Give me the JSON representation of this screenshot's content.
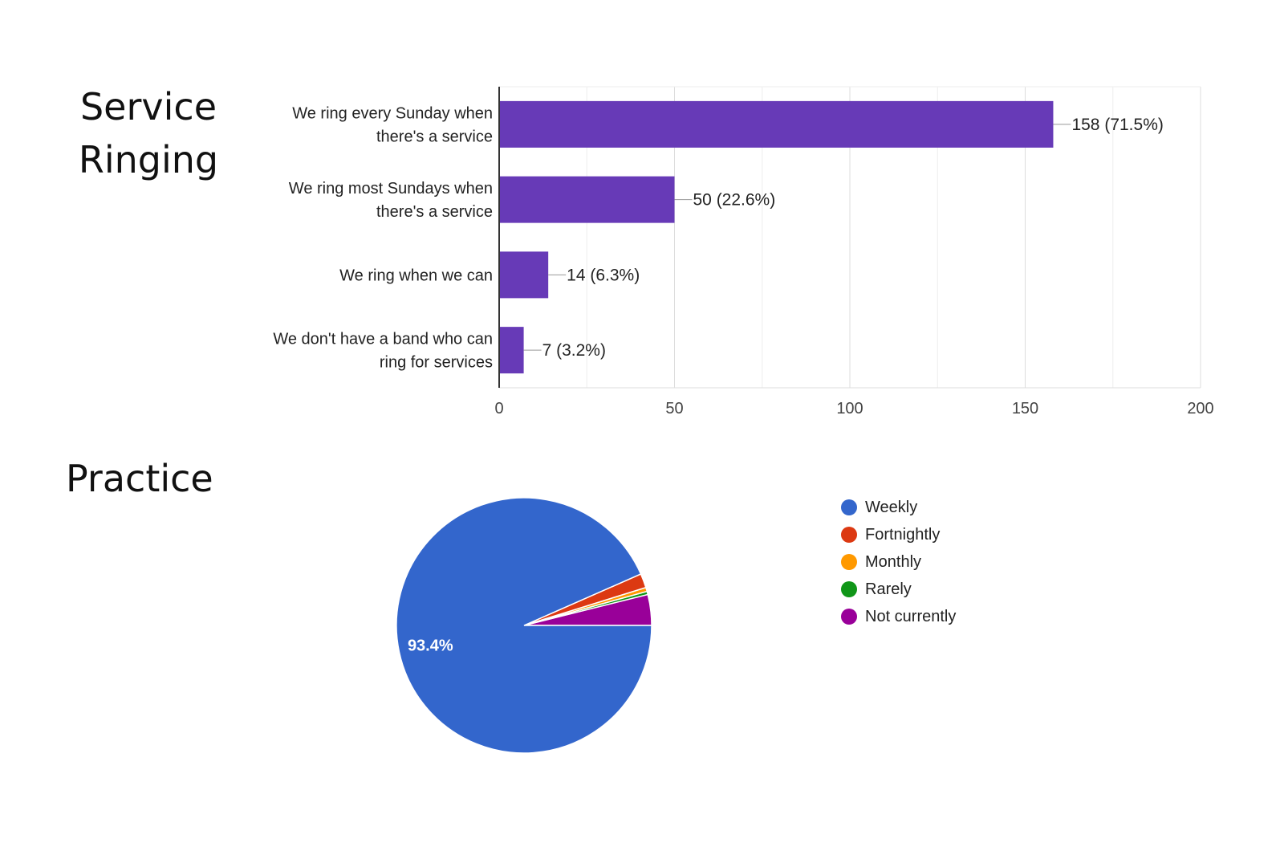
{
  "sections": {
    "service_title": "Service Ringing",
    "practice_title": "Practice"
  },
  "chart_data": [
    {
      "type": "bar",
      "orientation": "horizontal",
      "categories": [
        [
          "We ring every Sunday when",
          "there's a service"
        ],
        [
          "We ring most Sundays when",
          "there's a service"
        ],
        [
          "We ring when we can"
        ],
        [
          "We don't have a band who can",
          "ring for services"
        ]
      ],
      "values": [
        158,
        50,
        14,
        7
      ],
      "data_labels": [
        "158 (71.5%)",
        "50 (22.6%)",
        "14 (6.3%)",
        "7 (3.2%)"
      ],
      "xlim": [
        0,
        200
      ],
      "xticks": [
        0,
        50,
        100,
        150,
        200
      ],
      "grid": true,
      "bar_color": "#673ab7"
    },
    {
      "type": "pie",
      "labels": [
        "Weekly",
        "Fortnightly",
        "Monthly",
        "Rarely",
        "Not currently"
      ],
      "values": [
        93.4,
        1.8,
        0.5,
        0.4,
        3.9
      ],
      "colors": [
        "#3366cc",
        "#dc3912",
        "#ff9900",
        "#109618",
        "#990099"
      ],
      "slice_labels": [
        "93.4%",
        "",
        "",
        "",
        ""
      ],
      "legend_position": "right"
    }
  ]
}
